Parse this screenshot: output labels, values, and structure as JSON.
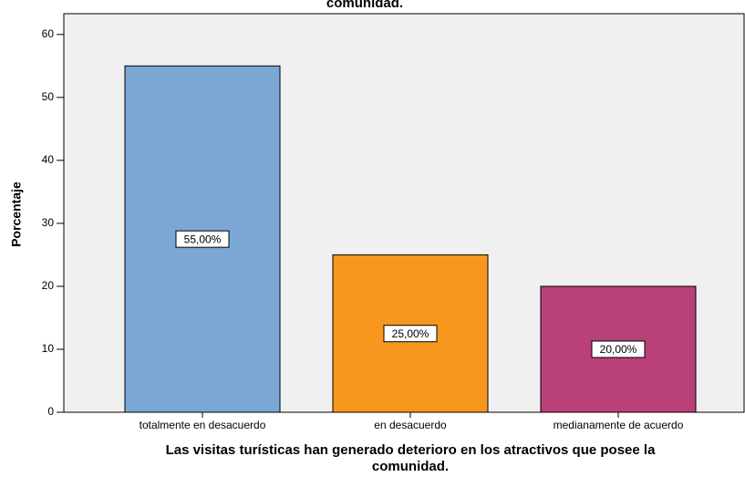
{
  "chart_data": {
    "type": "bar",
    "title": "comunidad.",
    "x_label": [
      "Las visitas turísticas han generado deterioro en los atractivos que posee la",
      "comunidad."
    ],
    "y_label": "Porcentaje",
    "categories": [
      "totalmente en desacuerdo",
      "en desacuerdo",
      "medianamente de acuerdo"
    ],
    "values": [
      55,
      25,
      20
    ],
    "value_labels": [
      "55,00%",
      "25,00%",
      "20,00%"
    ],
    "colors": [
      "#7ba7d5",
      "#f7971e",
      "#b94079"
    ],
    "ylim": [
      0,
      63.3
    ],
    "yticks": [
      0,
      10,
      20,
      30,
      40,
      50,
      60
    ]
  }
}
